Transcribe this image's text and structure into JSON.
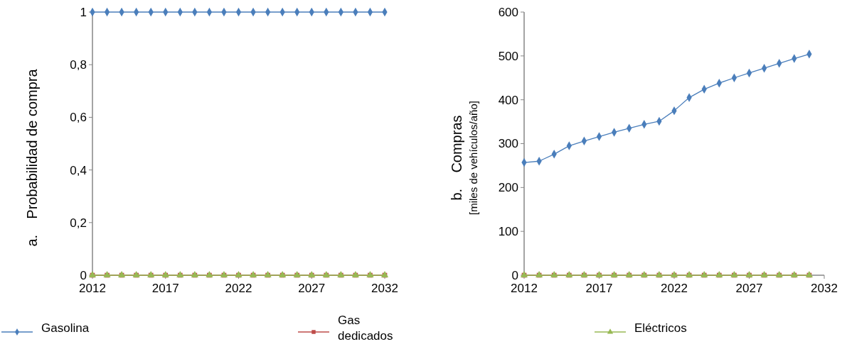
{
  "chart_data": [
    {
      "type": "line",
      "ylabel": "a.    Probabilidad de compra",
      "x": [
        2012,
        2013,
        2014,
        2015,
        2016,
        2017,
        2018,
        2019,
        2020,
        2021,
        2022,
        2023,
        2024,
        2025,
        2026,
        2027,
        2028,
        2029,
        2030,
        2031,
        2032
      ],
      "xlim": [
        2012,
        2032
      ],
      "xticks": [
        2012,
        2017,
        2022,
        2027,
        2032
      ],
      "ylim": [
        0,
        1
      ],
      "yticks": [
        0,
        {
          "value": 0.2,
          "label": "0,2"
        },
        {
          "value": 0.4,
          "label": "0,4"
        },
        {
          "value": 0.6,
          "label": "0,6"
        },
        {
          "value": 0.8,
          "label": "0,8"
        },
        1
      ],
      "grid": false,
      "legend": "bottom",
      "series": [
        {
          "name": "Gasolina",
          "color": "#4a7ebb",
          "marker": "diamond",
          "values": [
            1,
            1,
            1,
            1,
            1,
            1,
            1,
            1,
            1,
            1,
            1,
            1,
            1,
            1,
            1,
            1,
            1,
            1,
            1,
            1,
            1
          ]
        },
        {
          "name": "Gas dedicados",
          "color": "#be4b48",
          "marker": "square",
          "values": [
            0,
            0,
            0,
            0,
            0,
            0,
            0,
            0,
            0,
            0,
            0,
            0,
            0,
            0,
            0,
            0,
            0,
            0,
            0,
            0,
            0
          ]
        },
        {
          "name": "Eléctricos",
          "color": "#98b954",
          "marker": "triangle",
          "values": [
            0,
            0,
            0,
            0,
            0,
            0,
            0,
            0,
            0,
            0,
            0,
            0,
            0,
            0,
            0,
            0,
            0,
            0,
            0,
            0,
            0
          ]
        }
      ]
    },
    {
      "type": "line",
      "ylabel": "b.    Compras\n[miles de vehículos/año]",
      "x": [
        2012,
        2013,
        2014,
        2015,
        2016,
        2017,
        2018,
        2019,
        2020,
        2021,
        2022,
        2023,
        2024,
        2025,
        2026,
        2027,
        2028,
        2029,
        2030,
        2031
      ],
      "xlim": [
        2012,
        2032
      ],
      "xticks": [
        2012,
        2017,
        2022,
        2027,
        2032
      ],
      "ylim": [
        0,
        600
      ],
      "yticks": [
        0,
        100,
        200,
        300,
        400,
        500,
        600
      ],
      "grid": false,
      "series": [
        {
          "color": "#4a7ebb",
          "marker": "diamond",
          "values": [
            257,
            260,
            276,
            295,
            306,
            316,
            326,
            335,
            344,
            351,
            375,
            405,
            424,
            438,
            450,
            461,
            472,
            483,
            494,
            504
          ]
        },
        {
          "color": "#be4b48",
          "marker": "square",
          "values": [
            0,
            0,
            0,
            0,
            0,
            0,
            0,
            0,
            0,
            0,
            0,
            0,
            0,
            0,
            0,
            0,
            0,
            0,
            0,
            0
          ]
        },
        {
          "color": "#98b954",
          "marker": "triangle",
          "values": [
            0,
            0,
            0,
            0,
            0,
            0,
            0,
            0,
            0,
            0,
            0,
            0,
            0,
            0,
            0,
            0,
            0,
            0,
            0,
            0
          ]
        }
      ]
    }
  ]
}
